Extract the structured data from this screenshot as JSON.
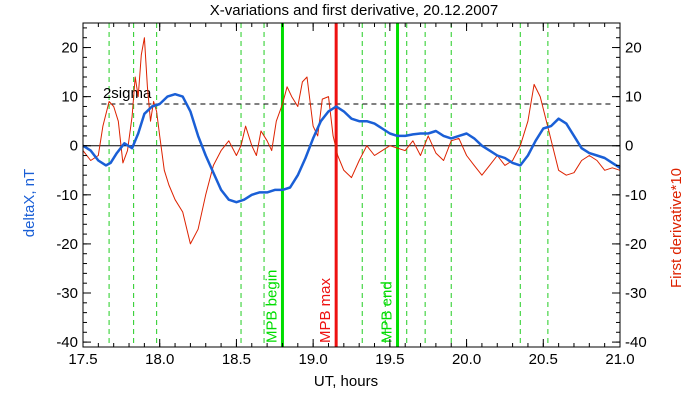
{
  "chart_data": {
    "type": "line",
    "title": "X-variations and first derivative, 20.12.2007",
    "xlabel": "UT, hours",
    "ylabel_left": "deltaX, nT",
    "ylabel_right": "First derivative*10",
    "xlim": [
      17.5,
      21.0
    ],
    "ylim": [
      -41,
      25
    ],
    "x_ticks": [
      17.5,
      18.0,
      18.5,
      19.0,
      19.5,
      20.0,
      20.5,
      21.0
    ],
    "x_tick_labels": [
      "17.5",
      "18.0",
      "18.5",
      "19.0",
      "19.5",
      "20.0",
      "20.5",
      "21.0"
    ],
    "y_ticks": [
      20,
      10,
      0,
      -10,
      -20,
      -30,
      -40
    ],
    "y_tick_labels": [
      "20",
      "10",
      "0",
      "-10",
      "-20",
      "-30",
      "-40"
    ],
    "grid": false,
    "legend": "none",
    "sigma_level": 8.5,
    "sigma_label": "2sigma",
    "markers": [
      {
        "x": 18.8,
        "label": "MPB begin",
        "color": "#00dd00"
      },
      {
        "x": 19.15,
        "label": "MPB max",
        "color": "#ee1111"
      },
      {
        "x": 19.55,
        "label": "MPB end",
        "color": "#00dd00"
      }
    ],
    "dashed_verticals": [
      17.67,
      17.83,
      17.98,
      18.53,
      18.68,
      19.32,
      19.47,
      19.61,
      19.73,
      19.9,
      20.35,
      20.53
    ],
    "colors": {
      "deltaX": "#1a5fd6",
      "derivative": "#dd2200",
      "dashed_green": "#22cc22",
      "axis": "#000000"
    },
    "series": [
      {
        "name": "deltaX, nT",
        "x": [
          17.5,
          17.55,
          17.6,
          17.65,
          17.68,
          17.72,
          17.77,
          17.82,
          17.86,
          17.9,
          17.95,
          18.0,
          18.05,
          18.1,
          18.15,
          18.2,
          18.25,
          18.3,
          18.35,
          18.4,
          18.45,
          18.5,
          18.55,
          18.6,
          18.65,
          18.7,
          18.75,
          18.8,
          18.85,
          18.9,
          18.95,
          19.0,
          19.05,
          19.1,
          19.15,
          19.2,
          19.25,
          19.3,
          19.35,
          19.4,
          19.45,
          19.5,
          19.55,
          19.6,
          19.65,
          19.7,
          19.75,
          19.8,
          19.85,
          19.9,
          19.95,
          20.0,
          20.05,
          20.1,
          20.15,
          20.2,
          20.25,
          20.3,
          20.35,
          20.4,
          20.45,
          20.5,
          20.55,
          20.6,
          20.65,
          20.7,
          20.75,
          20.8,
          20.85,
          20.9,
          20.95,
          21.0
        ],
        "y": [
          0.0,
          -1.0,
          -3.0,
          -4.0,
          -3.5,
          -1.5,
          0.5,
          -0.5,
          2.5,
          6.5,
          8.0,
          8.5,
          10.0,
          10.5,
          10.0,
          7.0,
          2.0,
          -2.0,
          -5.5,
          -9.0,
          -11.0,
          -11.5,
          -11.0,
          -10.0,
          -9.5,
          -9.5,
          -9.0,
          -9.0,
          -8.5,
          -6.0,
          -2.5,
          1.5,
          5.0,
          7.0,
          8.0,
          7.0,
          5.5,
          5.0,
          5.0,
          4.5,
          3.5,
          2.5,
          2.0,
          2.0,
          2.3,
          2.5,
          2.5,
          3.0,
          2.0,
          1.5,
          2.0,
          2.5,
          1.5,
          0.0,
          -1.0,
          -2.0,
          -2.5,
          -3.5,
          -4.0,
          -2.0,
          1.0,
          3.5,
          4.0,
          5.5,
          4.5,
          2.0,
          -0.5,
          -1.5,
          -2.0,
          -2.5,
          -3.5,
          -4.5
        ]
      },
      {
        "name": "First derivative*10",
        "x": [
          17.5,
          17.55,
          17.6,
          17.63,
          17.67,
          17.7,
          17.73,
          17.76,
          17.79,
          17.82,
          17.84,
          17.86,
          17.88,
          17.9,
          17.92,
          17.94,
          17.96,
          17.98,
          18.0,
          18.03,
          18.06,
          18.1,
          18.15,
          18.2,
          18.25,
          18.3,
          18.35,
          18.4,
          18.45,
          18.5,
          18.53,
          18.56,
          18.6,
          18.63,
          18.66,
          18.7,
          18.73,
          18.76,
          18.8,
          18.83,
          18.86,
          18.9,
          18.93,
          18.96,
          19.0,
          19.03,
          19.06,
          19.1,
          19.13,
          19.16,
          19.2,
          19.25,
          19.3,
          19.35,
          19.4,
          19.45,
          19.5,
          19.55,
          19.6,
          19.65,
          19.7,
          19.75,
          19.8,
          19.85,
          19.9,
          19.95,
          20.0,
          20.05,
          20.1,
          20.15,
          20.2,
          20.25,
          20.3,
          20.35,
          20.4,
          20.44,
          20.48,
          20.52,
          20.56,
          20.6,
          20.65,
          20.7,
          20.75,
          20.8,
          20.85,
          20.9,
          20.95,
          21.0
        ],
        "y": [
          -1.0,
          -3.0,
          -2.0,
          4.0,
          9.0,
          8.0,
          5.0,
          -3.5,
          -1.0,
          6.0,
          14.0,
          10.0,
          18.5,
          22.0,
          12.0,
          5.0,
          9.0,
          7.0,
          2.0,
          -5.0,
          -8.0,
          -11.0,
          -13.5,
          -20.0,
          -17.0,
          -10.0,
          -4.0,
          -1.0,
          1.0,
          -2.0,
          0.0,
          4.0,
          0.0,
          -2.0,
          3.0,
          1.0,
          -1.0,
          5.0,
          8.5,
          12.0,
          10.0,
          8.0,
          13.0,
          14.0,
          4.0,
          2.0,
          9.5,
          10.0,
          2.0,
          -2.0,
          -5.0,
          -6.5,
          -3.0,
          0.0,
          -2.0,
          -1.0,
          0.0,
          -0.5,
          -1.0,
          1.0,
          -2.0,
          2.0,
          -1.5,
          -3.0,
          1.0,
          1.5,
          -2.0,
          -4.0,
          -6.0,
          -4.0,
          -2.0,
          -4.0,
          -3.0,
          0.0,
          5.0,
          12.5,
          10.0,
          5.0,
          0.0,
          -5.0,
          -6.0,
          -5.5,
          -3.0,
          -2.0,
          -3.0,
          -5.0,
          -4.5,
          -5.0
        ]
      }
    ]
  }
}
